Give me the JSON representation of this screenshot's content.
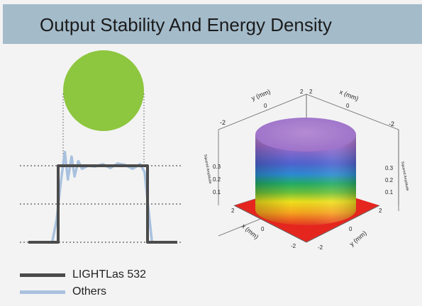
{
  "header": {
    "title": "Output Stability And Energy Density"
  },
  "colors": {
    "header_bg": "#a4bbca",
    "spot": "#8dc63f",
    "lightlas": "#4b4b4b",
    "others": "#a9c1de",
    "guide": "#555555"
  },
  "legend": {
    "items": [
      {
        "label": "LIGHTLas 532",
        "color": "#4b4b4b"
      },
      {
        "label": "Others",
        "color": "#a9c1de"
      }
    ]
  },
  "chart_data": [
    {
      "type": "line",
      "title": "",
      "xlabel": "",
      "ylabel": "",
      "grid": false,
      "legend_position": "bottom-left",
      "reference_levels": [
        0,
        0.5,
        1
      ],
      "series": [
        {
          "name": "LIGHTLas 532",
          "color": "#4b4b4b",
          "x": [
            0,
            0.2,
            0.2,
            0.8,
            0.8,
            1
          ],
          "y": [
            0,
            0,
            1,
            1,
            0,
            0
          ]
        },
        {
          "name": "Others",
          "color": "#a9c1de",
          "x": [
            0,
            0.16,
            0.19,
            0.22,
            0.245,
            0.265,
            0.29,
            0.31,
            0.335,
            0.36,
            0.4,
            0.45,
            0.5,
            0.55,
            0.6,
            0.65,
            0.7,
            0.75,
            0.78,
            0.8,
            0.83,
            1
          ],
          "y": [
            0,
            0,
            0.3,
            0.82,
            1.18,
            0.82,
            1.12,
            0.86,
            1.06,
            0.96,
            1.0,
            0.99,
            1.02,
            0.97,
            1.03,
            1.01,
            0.96,
            1.02,
            0.92,
            0.55,
            0,
            0
          ]
        }
      ]
    },
    {
      "type": "heatmap",
      "subtype": "3d-surface",
      "title": "",
      "axes": {
        "x": {
          "label": "x (mm)",
          "ticks": [
            "2",
            "0",
            "-2"
          ]
        },
        "y": {
          "label": "y (mm)",
          "ticks": [
            "2",
            "0",
            "-2"
          ]
        },
        "z": {
          "label": "Squared Amplitude",
          "ticks": [
            "0.1",
            "0.2",
            "0.3"
          ]
        }
      },
      "colormap": [
        "#e02020",
        "#f59b1e",
        "#f2e21a",
        "#1fb35a",
        "#2f6bd4",
        "#7b52c9",
        "#b384cf"
      ]
    }
  ]
}
